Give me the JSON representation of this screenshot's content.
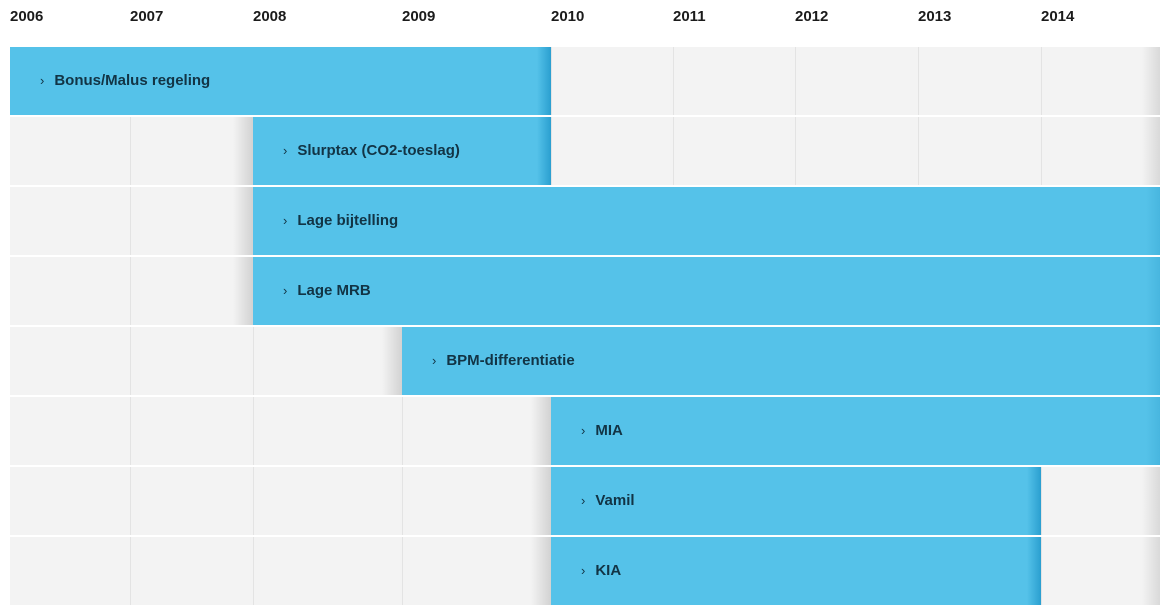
{
  "years": [
    "2006",
    "2007",
    "2008",
    "2009",
    "2010",
    "2011",
    "2012",
    "2013",
    "2014"
  ],
  "rows": [
    {
      "label": "Bonus/Malus regeling"
    },
    {
      "label": "Slurptax (CO2-toeslag)"
    },
    {
      "label": "Lage bijtelling"
    },
    {
      "label": "Lage MRB"
    },
    {
      "label": "BPM-differentiatie"
    },
    {
      "label": "MIA"
    },
    {
      "label": "Vamil"
    },
    {
      "label": "KIA"
    }
  ]
}
